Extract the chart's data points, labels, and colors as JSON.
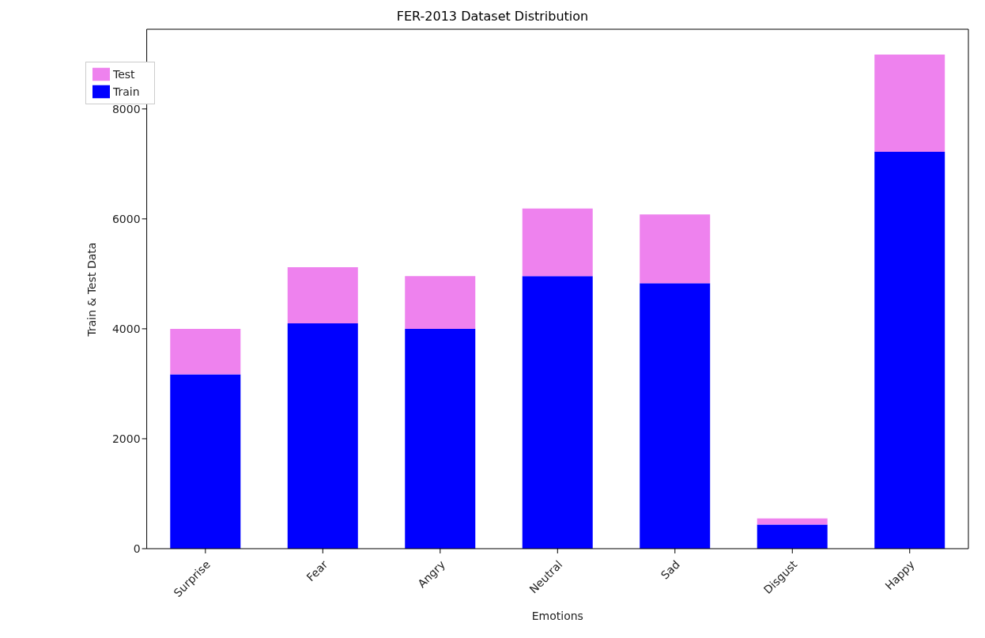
{
  "chart_data": {
    "type": "bar",
    "title": "FER-2013 Dataset Distribution",
    "xlabel": "Emotions",
    "ylabel": "Train & Test Data",
    "categories": [
      "Surprise",
      "Fear",
      "Angry",
      "Neutral",
      "Sad",
      "Disgust",
      "Happy"
    ],
    "series": [
      {
        "name": "Train",
        "color": "#0000ff",
        "values": [
          3170,
          4100,
          4000,
          4960,
          4830,
          440,
          7220
        ]
      },
      {
        "name": "Test",
        "color": "#ee82ee",
        "values": [
          830,
          1020,
          960,
          1230,
          1250,
          110,
          1770
        ]
      }
    ],
    "stacked": true,
    "ylim": [
      0,
      9450
    ],
    "yticks": [
      0,
      2000,
      4000,
      6000,
      8000
    ],
    "grid": false,
    "legend": "top left"
  }
}
